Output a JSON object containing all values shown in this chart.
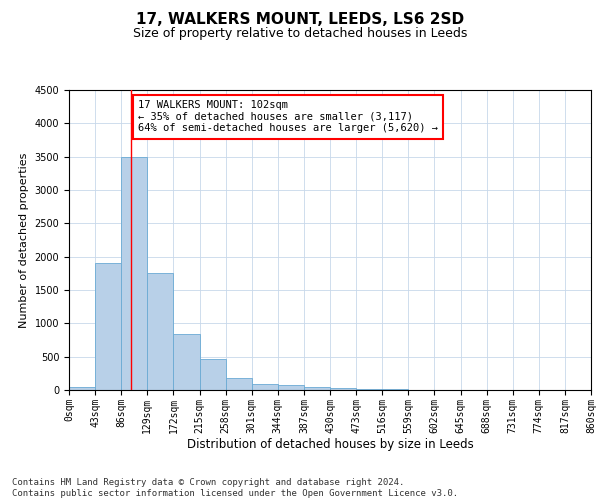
{
  "title": "17, WALKERS MOUNT, LEEDS, LS6 2SD",
  "subtitle": "Size of property relative to detached houses in Leeds",
  "xlabel": "Distribution of detached houses by size in Leeds",
  "ylabel": "Number of detached properties",
  "bar_color": "#b8d0e8",
  "bar_edge_color": "#6aaad4",
  "background_color": "#ffffff",
  "grid_color": "#c8d8ea",
  "vline_x": 102,
  "vline_color": "red",
  "ylim": [
    0,
    4500
  ],
  "bin_edges": [
    0,
    43,
    86,
    129,
    172,
    215,
    258,
    301,
    344,
    387,
    430,
    473,
    516,
    559,
    602,
    645,
    688,
    731,
    774,
    817,
    860
  ],
  "bar_heights": [
    50,
    1900,
    3500,
    1760,
    840,
    460,
    185,
    95,
    70,
    50,
    35,
    20,
    10,
    5,
    3,
    2,
    1,
    1,
    0,
    0
  ],
  "annotation_text": "17 WALKERS MOUNT: 102sqm\n← 35% of detached houses are smaller (3,117)\n64% of semi-detached houses are larger (5,620) →",
  "annotation_box_color": "white",
  "annotation_box_edge": "red",
  "footer_line1": "Contains HM Land Registry data © Crown copyright and database right 2024.",
  "footer_line2": "Contains public sector information licensed under the Open Government Licence v3.0.",
  "title_fontsize": 11,
  "subtitle_fontsize": 9,
  "axis_label_fontsize": 8,
  "tick_fontsize": 7,
  "annotation_fontsize": 7.5,
  "footer_fontsize": 6.5
}
